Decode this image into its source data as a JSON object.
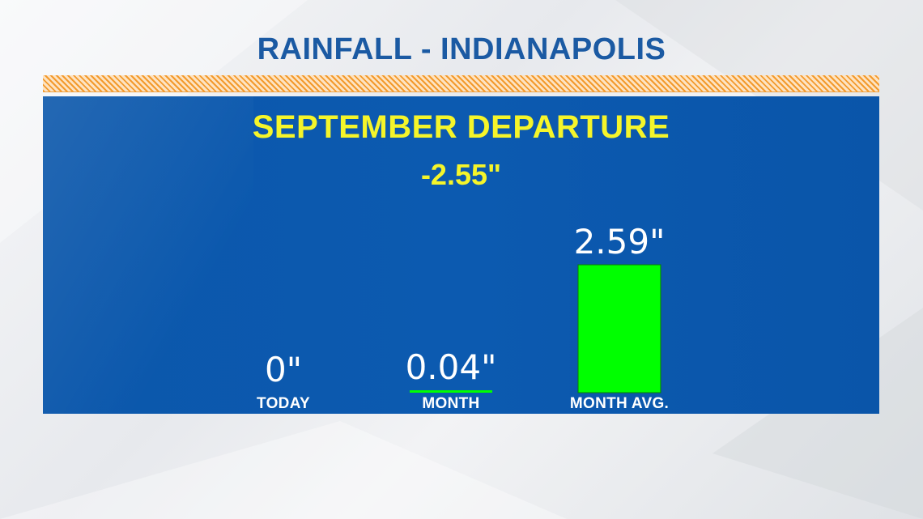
{
  "page": {
    "title": "RAINFALL - INDIANAPOLIS"
  },
  "chart_data": {
    "type": "bar",
    "headline": "SEPTEMBER DEPARTURE",
    "departure_value": "-2.55\"",
    "categories": [
      "TODAY",
      "MONTH",
      "MONTH AVG."
    ],
    "values": [
      0,
      0.04,
      2.59
    ],
    "value_labels": [
      "0\"",
      "0.04\"",
      "2.59\""
    ],
    "units": "inches",
    "ylim": [
      0,
      2.59
    ],
    "grid": false,
    "legend": "none",
    "bar_color": "#00ff00",
    "panel_color": "#0b57ab"
  }
}
